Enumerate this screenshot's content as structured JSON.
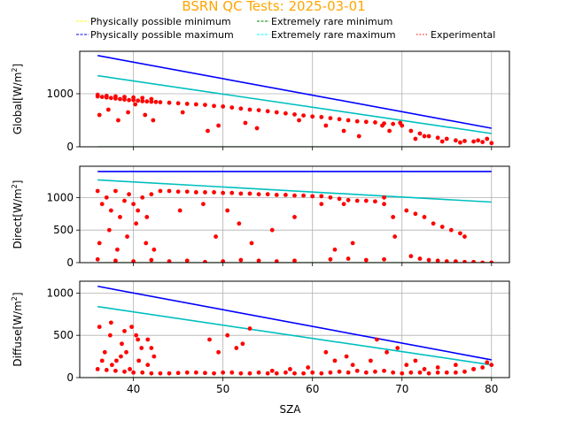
{
  "title": "BSRN QC Tests: 2025-03-01",
  "title_color": "#ffa500",
  "legend": {
    "placement": "top",
    "items": [
      {
        "label": "Physically possible minimum",
        "color": "#ffff00",
        "style": "dashed"
      },
      {
        "label": "Extremely rare minimum",
        "color": "#008000",
        "style": "dashed"
      },
      {
        "label": "Physically possible maximum",
        "color": "#0000ff",
        "style": "dashed"
      },
      {
        "label": "Extremely rare maximum",
        "color": "#00ffff",
        "style": "dashed"
      },
      {
        "label": "Experimental",
        "color": "#ff0000",
        "style": "dotted"
      }
    ]
  },
  "chart_data": [
    {
      "type": "scatter",
      "ylabel_base": "Global[W/m",
      "ylabel_sup": "2",
      "ylabel_end": "]",
      "xlim": [
        34,
        82
      ],
      "ylim": [
        0,
        1800
      ],
      "xticks": [
        40,
        50,
        60,
        70,
        80
      ],
      "yticks": [
        0,
        1000
      ],
      "grid": true,
      "lines": [
        {
          "name": "Physically possible maximum",
          "color": "#0000ff",
          "x": [
            36,
            80
          ],
          "y": [
            1720,
            350
          ]
        },
        {
          "name": "Extremely rare maximum",
          "color": "#00bfbf",
          "x": [
            36,
            80
          ],
          "y": [
            1340,
            250
          ]
        },
        {
          "name": "Physically possible minimum",
          "color": "#ffff00",
          "x": [
            36,
            80
          ],
          "y": [
            -4,
            -4
          ]
        },
        {
          "name": "Extremely rare minimum",
          "color": "#008000",
          "x": [
            36,
            80
          ],
          "y": [
            -2,
            -2
          ]
        }
      ],
      "scatter_color": "#ff0000",
      "scatter": {
        "x": [
          36,
          36.5,
          37,
          37.5,
          38,
          38.5,
          39,
          39.5,
          40,
          40.5,
          41,
          41.5,
          42,
          42.5,
          43,
          44,
          45,
          46,
          47,
          48,
          49,
          50,
          51,
          52,
          53,
          54,
          55,
          56,
          57,
          58,
          59,
          60,
          61,
          62,
          63,
          64,
          65,
          66,
          67,
          68,
          69,
          70,
          71,
          72,
          73,
          74,
          75,
          76,
          77,
          78,
          79,
          80,
          36.2,
          37.2,
          38.3,
          39.4,
          40.2,
          41.3,
          42.2,
          45.5,
          48.3,
          49.5,
          52.5,
          53.8,
          58.5,
          61.5,
          63.5,
          65.2,
          67.8,
          68.6,
          69.8,
          71.5,
          72.5,
          74.5,
          76.5,
          78.5,
          79.5,
          36,
          37,
          38,
          39,
          40,
          41,
          42
        ],
        "y": [
          950,
          940,
          930,
          920,
          910,
          900,
          890,
          880,
          880,
          870,
          860,
          855,
          850,
          845,
          840,
          830,
          820,
          810,
          800,
          790,
          770,
          760,
          740,
          720,
          700,
          690,
          670,
          650,
          630,
          610,
          590,
          570,
          560,
          540,
          520,
          500,
          480,
          470,
          460,
          440,
          430,
          400,
          300,
          250,
          200,
          170,
          150,
          120,
          110,
          100,
          90,
          70,
          600,
          700,
          500,
          650,
          800,
          600,
          500,
          650,
          300,
          400,
          450,
          350,
          500,
          400,
          300,
          200,
          400,
          300,
          450,
          150,
          200,
          100,
          80,
          120,
          150,
          980,
          960,
          950,
          940,
          930,
          920,
          900
        ]
      }
    },
    {
      "type": "scatter",
      "ylabel_base": "Direct[W/m",
      "ylabel_sup": "2",
      "ylabel_end": "]",
      "xlim": [
        34,
        82
      ],
      "ylim": [
        0,
        1480
      ],
      "xticks": [
        40,
        50,
        60,
        70,
        80
      ],
      "yticks": [
        0,
        500,
        1000
      ],
      "grid": true,
      "lines": [
        {
          "name": "Physically possible maximum",
          "color": "#0000ff",
          "x": [
            36,
            80
          ],
          "y": [
            1400,
            1400
          ]
        },
        {
          "name": "Extremely rare maximum",
          "color": "#00bfbf",
          "x": [
            36,
            80
          ],
          "y": [
            1270,
            930
          ]
        },
        {
          "name": "Physically possible minimum",
          "color": "#ffff00",
          "x": [
            36,
            80
          ],
          "y": [
            -4,
            -4
          ]
        },
        {
          "name": "Extremely rare minimum",
          "color": "#008000",
          "x": [
            36,
            80
          ],
          "y": [
            -2,
            -2
          ]
        }
      ],
      "scatter_color": "#ff0000",
      "scatter": {
        "x": [
          43,
          44,
          45,
          46,
          47,
          48,
          49,
          50,
          51,
          52,
          53,
          54,
          55,
          56,
          57,
          58,
          59,
          60,
          61,
          62,
          63,
          64,
          65,
          66,
          67,
          68,
          69,
          36,
          36.5,
          37,
          37.5,
          38,
          38.5,
          39,
          39.5,
          40,
          40.5,
          41,
          41.5,
          42,
          36.2,
          37.3,
          38.2,
          39.3,
          40.3,
          41.4,
          42.3,
          45.2,
          47.8,
          49.2,
          50.5,
          51.8,
          53.2,
          55.5,
          58,
          61,
          62.5,
          63.5,
          64.5,
          68,
          69.2,
          70.5,
          71.5,
          72.5,
          73.5,
          74.5,
          75.5,
          76.5,
          77,
          71,
          72,
          73,
          74,
          75,
          76,
          77,
          78,
          79,
          80,
          62,
          64,
          66,
          68,
          36,
          38,
          40,
          42,
          44,
          46,
          48,
          50,
          52,
          54,
          56,
          58
        ],
        "y": [
          1100,
          1100,
          1090,
          1090,
          1080,
          1080,
          1080,
          1070,
          1070,
          1060,
          1060,
          1050,
          1050,
          1040,
          1040,
          1030,
          1030,
          1020,
          1020,
          1000,
          980,
          960,
          950,
          950,
          940,
          900,
          700,
          1100,
          900,
          1000,
          800,
          1100,
          700,
          950,
          1050,
          900,
          800,
          1000,
          700,
          1050,
          300,
          500,
          200,
          400,
          600,
          300,
          200,
          800,
          900,
          400,
          800,
          600,
          300,
          500,
          700,
          900,
          200,
          900,
          300,
          1000,
          400,
          800,
          750,
          700,
          600,
          550,
          500,
          450,
          400,
          100,
          60,
          40,
          30,
          20,
          20,
          10,
          10,
          0,
          0,
          50,
          60,
          40,
          50,
          50,
          30,
          20,
          40,
          20,
          30,
          10,
          20,
          40,
          30,
          20,
          30
        ]
      }
    },
    {
      "type": "scatter",
      "ylabel_base": "Diffuse[W/m",
      "ylabel_sup": "2",
      "ylabel_end": "]",
      "xlabel": "SZA",
      "xlim": [
        34,
        82
      ],
      "ylim": [
        0,
        1140
      ],
      "xticks": [
        40,
        50,
        60,
        70,
        80
      ],
      "xticklabels": [
        "40",
        "50",
        "60",
        "70",
        "80"
      ],
      "yticks": [
        0,
        500,
        1000
      ],
      "grid": true,
      "lines": [
        {
          "name": "Physically possible maximum",
          "color": "#0000ff",
          "x": [
            36,
            80
          ],
          "y": [
            1080,
            210
          ]
        },
        {
          "name": "Extremely rare maximum",
          "color": "#00bfbf",
          "x": [
            36,
            80
          ],
          "y": [
            840,
            150
          ]
        },
        {
          "name": "Physically possible minimum",
          "color": "#ffff00",
          "x": [
            36,
            80
          ],
          "y": [
            -4,
            -4
          ]
        },
        {
          "name": "Extremely rare minimum",
          "color": "#008000",
          "x": [
            36,
            80
          ],
          "y": [
            -2,
            -2
          ]
        }
      ],
      "scatter_color": "#ff0000",
      "scatter": {
        "x": [
          36,
          37,
          38,
          39,
          40,
          41,
          42,
          43,
          44,
          45,
          46,
          47,
          48,
          49,
          50,
          51,
          52,
          53,
          54,
          55,
          56,
          57,
          58,
          59,
          60,
          61,
          62,
          63,
          64,
          65,
          66,
          67,
          68,
          69,
          70,
          71,
          72,
          73,
          74,
          75,
          76,
          77,
          78,
          79,
          80,
          36.2,
          36.8,
          37.4,
          38.1,
          38.7,
          39.2,
          39.8,
          40.3,
          40.9,
          41.6,
          42.3,
          37.5,
          39,
          40.5,
          42,
          48.5,
          49.5,
          50.5,
          51.5,
          52.2,
          53,
          61.5,
          62.5,
          63.8,
          66.5,
          67.2,
          68.3,
          69.5,
          70.5,
          71.5,
          36.5,
          37.6,
          38.6,
          39.6,
          40.6,
          41.6,
          55.5,
          57.5,
          59.5,
          64.5,
          72.5,
          74,
          76,
          78,
          79.5
        ],
        "y": [
          100,
          90,
          80,
          70,
          60,
          60,
          50,
          50,
          50,
          55,
          60,
          60,
          55,
          50,
          60,
          60,
          50,
          50,
          60,
          50,
          50,
          60,
          50,
          50,
          60,
          50,
          60,
          70,
          60,
          80,
          60,
          70,
          80,
          60,
          50,
          60,
          60,
          50,
          60,
          60,
          60,
          70,
          100,
          120,
          150,
          600,
          300,
          500,
          200,
          400,
          300,
          600,
          500,
          350,
          450,
          250,
          650,
          550,
          450,
          350,
          450,
          300,
          500,
          350,
          400,
          580,
          300,
          200,
          250,
          200,
          450,
          300,
          350,
          150,
          200,
          200,
          150,
          250,
          100,
          200,
          150,
          80,
          100,
          120,
          150,
          100,
          120,
          150,
          100,
          180
        ]
      }
    }
  ]
}
